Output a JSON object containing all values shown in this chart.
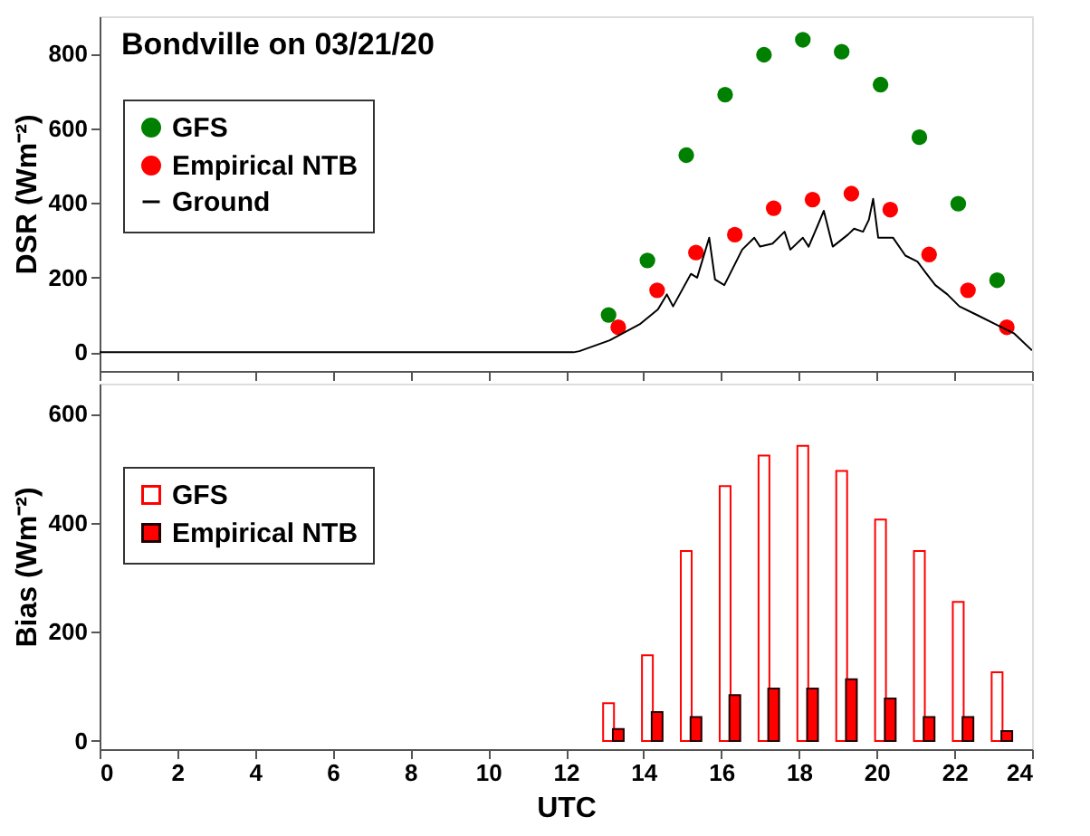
{
  "chart_data": [
    {
      "type": "scatter",
      "title": "Bondville on 03/21/20",
      "ylabel": "DSR (Wm⁻²)",
      "xlim": [
        0,
        24
      ],
      "xticks": [
        0,
        2,
        4,
        6,
        8,
        10,
        12,
        14,
        16,
        18,
        20,
        22,
        24
      ],
      "ylim": [
        -50,
        900
      ],
      "yticks": [
        0,
        200,
        400,
        600,
        800
      ],
      "tick_labels": "y",
      "legend": "top left",
      "grid": false,
      "series": [
        {
          "name": "GFS",
          "color": "#008000",
          "marker": "circle",
          "x": [
            13.1,
            14.1,
            15.1,
            16.1,
            17.1,
            18.1,
            19.1,
            20.1,
            21.1,
            22.1,
            23.1
          ],
          "values": [
            100,
            246,
            528,
            690,
            797,
            837,
            805,
            717,
            576,
            398,
            193
          ]
        },
        {
          "name": "Empirical NTB",
          "color": "#ff0000",
          "marker": "circle",
          "x": [
            13.35,
            14.35,
            15.35,
            16.35,
            17.35,
            18.35,
            19.35,
            20.35,
            21.35,
            22.35,
            23.35
          ],
          "values": [
            67,
            166,
            267,
            315,
            386,
            409,
            425,
            382,
            262,
            166,
            67
          ]
        },
        {
          "name": "Ground",
          "type": "line",
          "color": "#000000",
          "x": [
            0,
            12.2,
            12.35,
            13.13,
            13.9,
            14.37,
            14.6,
            14.76,
            15.22,
            15.38,
            15.69,
            15.84,
            16.08,
            16.54,
            16.85,
            17.0,
            17.32,
            17.63,
            17.78,
            18.1,
            18.25,
            18.48,
            18.64,
            18.87,
            19.26,
            19.42,
            19.65,
            19.8,
            19.91,
            20.04,
            20.42,
            20.74,
            21.05,
            21.28,
            21.51,
            21.82,
            22.13,
            22.6,
            23.06,
            23.53,
            24.0
          ],
          "values": [
            0,
            0,
            3,
            32,
            75,
            115,
            155,
            123,
            210,
            200,
            307,
            195,
            180,
            275,
            307,
            283,
            291,
            323,
            275,
            307,
            283,
            339,
            379,
            283,
            315,
            331,
            323,
            355,
            411,
            307,
            307,
            259,
            243,
            211,
            180,
            155,
            123,
            99,
            75,
            51,
            5
          ]
        }
      ]
    },
    {
      "type": "bar",
      "xlabel": "UTC",
      "ylabel": "Bias (Wm⁻²)",
      "xlim": [
        0,
        24
      ],
      "xticks": [
        0,
        2,
        4,
        6,
        8,
        10,
        12,
        14,
        16,
        18,
        20,
        22,
        24
      ],
      "ylim": [
        -15,
        655
      ],
      "yticks": [
        0,
        200,
        400,
        600
      ],
      "legend": "top left",
      "grid": false,
      "series": [
        {
          "name": "GFS",
          "color": "#ff0000",
          "x": [
            13.1,
            14.1,
            15.1,
            16.1,
            17.1,
            18.1,
            19.1,
            20.1,
            21.1,
            22.1,
            23.1
          ],
          "values": [
            69,
            157,
            348,
            467,
            523,
            541,
            495,
            406,
            348,
            255,
            126
          ]
        },
        {
          "name": "Empirical NTB",
          "color": "#ff0000",
          "x": [
            13.35,
            14.35,
            15.35,
            16.35,
            17.35,
            18.35,
            19.35,
            20.35,
            21.35,
            22.35,
            23.35
          ],
          "values": [
            22,
            53,
            44,
            84,
            96,
            96,
            113,
            78,
            44,
            44,
            18
          ]
        }
      ]
    }
  ]
}
